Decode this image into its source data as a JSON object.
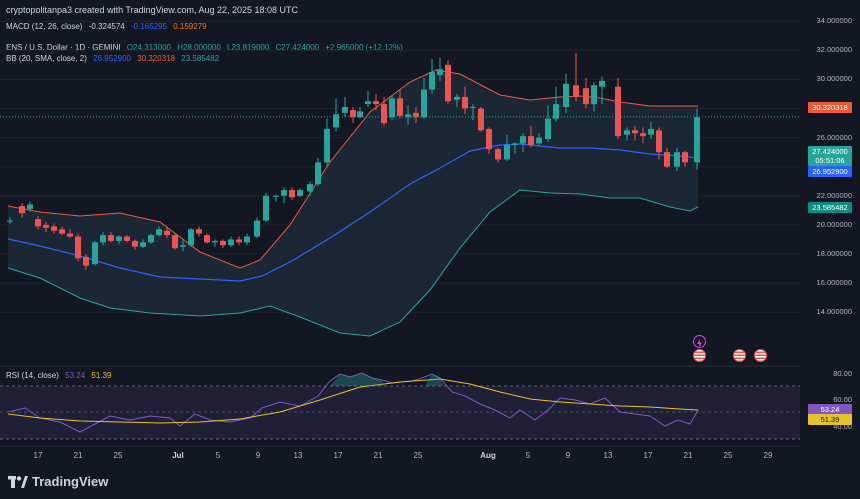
{
  "credit": "cryptopolitanpa3 created with TradingView.com, Aug 22, 2025 18:08 UTC",
  "macd": {
    "label": "MACD (12, 26, close)",
    "v1": "-0.324574",
    "v2": "-0.165295",
    "v3": "0.159279"
  },
  "symbol": {
    "title": "ENS / U.S. Dollar · 1D · GEMINI",
    "open": "O24.313000",
    "high": "H28.000000",
    "low": "L23.819000",
    "close": "C27.424000",
    "change": "+2.965000 (+12.12%)"
  },
  "bb": {
    "label": "BB (20, SMA, close, 2)",
    "basis": "26.952900",
    "upper": "30.320318",
    "lower": "23.585482"
  },
  "price_axis": [
    "34.000000",
    "32.000000",
    "30.000000",
    "28.000000",
    "26.000000",
    "24.000000",
    "22.000000",
    "20.000000",
    "18.000000",
    "16.000000",
    "14.000000"
  ],
  "tags": {
    "upper": "30.320318",
    "price": "27.424000",
    "countdown": "05:51:06",
    "basis": "26.952900",
    "lower": "23.585482"
  },
  "rsi": {
    "label": "RSI (14, close)",
    "v1": "53.24",
    "v2": "51.39",
    "axis": [
      "80.00",
      "60.00",
      "40.00"
    ]
  },
  "dates": [
    "17",
    "21",
    "25",
    "Jul",
    "5",
    "9",
    "13",
    "17",
    "21",
    "25",
    "Aug",
    "5",
    "9",
    "13",
    "17",
    "21",
    "25",
    "29"
  ],
  "brand": "TradingView",
  "colors": {
    "up": "#26a69a",
    "down": "#ef5350",
    "upper_band": "#f05a3a",
    "basis": "#2962ff",
    "lower_band": "#26a69a",
    "rsi": "#7e57c2",
    "rsi_ma": "#e6c229"
  }
}
